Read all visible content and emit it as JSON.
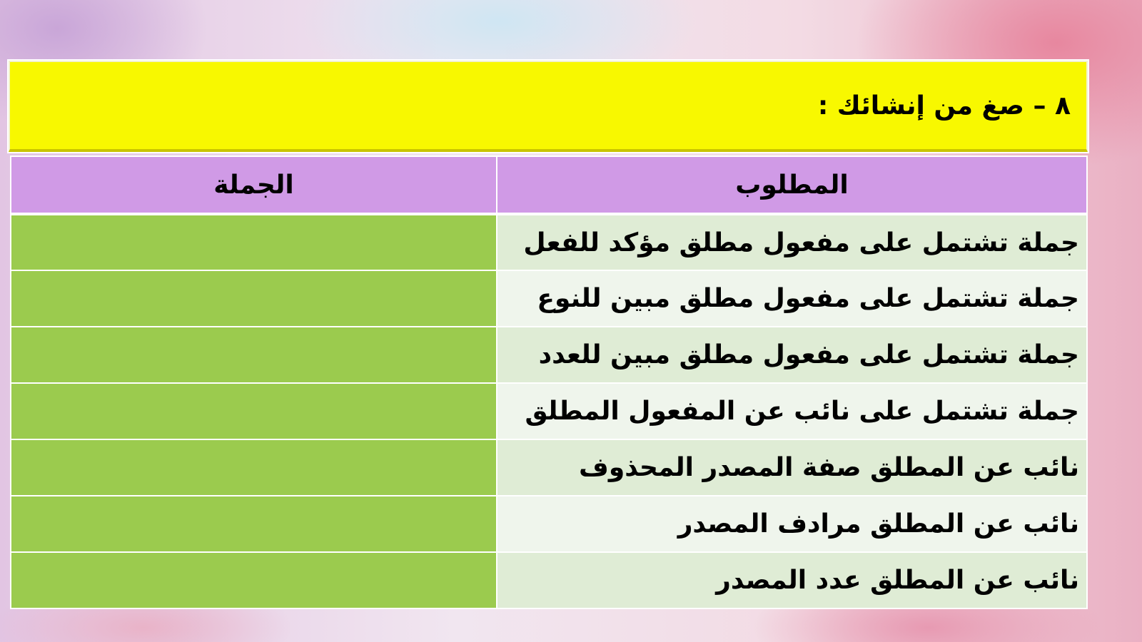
{
  "title": "٨ – صغ من إنشائك :",
  "table": {
    "headers": [
      "المطلوب",
      "الجملة"
    ],
    "rows": [
      {
        "required": "جملة تشتمل على مفعول مطلق مؤكد للفعل",
        "sentence": ""
      },
      {
        "required": "جملة تشتمل على مفعول مطلق مبين للنوع",
        "sentence": ""
      },
      {
        "required": "جملة تشتمل على مفعول مطلق مبين للعدد",
        "sentence": ""
      },
      {
        "required": "جملة تشتمل على نائب عن المفعول المطلق",
        "sentence": ""
      },
      {
        "required": "نائب عن المطلق صفة المصدر المحذوف",
        "sentence": ""
      },
      {
        "required": "نائب عن المطلق مرادف المصدر",
        "sentence": ""
      },
      {
        "required": "نائب عن المطلق عدد المصدر",
        "sentence": ""
      }
    ]
  },
  "colors": {
    "title_bg": "#f8f800",
    "header_bg": "#d09ae6",
    "answer_bg": "#9bcb4e",
    "row_a": "#dfecd5",
    "row_b": "#eff5ec"
  }
}
